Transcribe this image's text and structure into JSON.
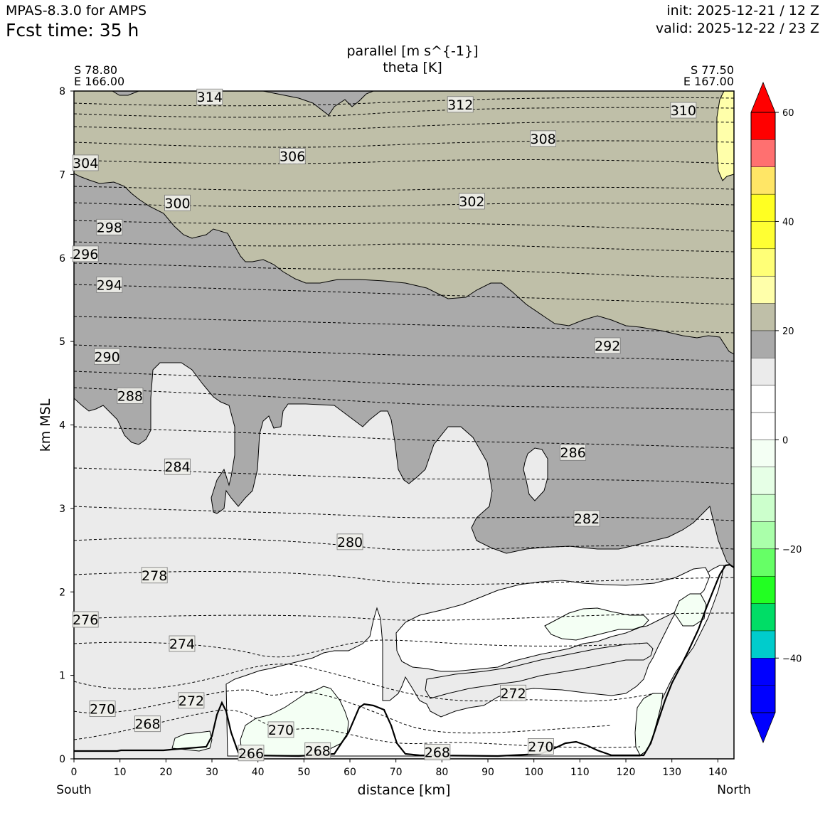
{
  "header": {
    "model": "MPAS-8.3.0 for AMPS",
    "fcst_time": "Fcst time:   35 h",
    "init": "init: 2025-12-21 / 12 Z",
    "valid": "valid: 2025-12-22 / 23 Z"
  },
  "chart_data": {
    "type": "cross-section",
    "title_line1": "parallel [m s^{-1}]",
    "title_line2": "theta [K]",
    "xlabel": "distance [km]",
    "ylabel": "km MSL",
    "xlim": [
      0,
      143.5
    ],
    "ylim": [
      0,
      8
    ],
    "x_ticks": [
      "0",
      "10",
      "20",
      "30",
      "40",
      "50",
      "60",
      "70",
      "80",
      "90",
      "100",
      "110",
      "120",
      "130",
      "140"
    ],
    "y_ticks": [
      "0",
      "1",
      "2",
      "3",
      "4",
      "5",
      "6",
      "7",
      "8"
    ],
    "left_endpoint": {
      "lat": "S 78.80",
      "lon": "E 166.00",
      "label": "South"
    },
    "right_endpoint": {
      "lat": "S 77.50",
      "lon": "E 167.00",
      "label": "North"
    },
    "colorbar": {
      "levels": [
        -50,
        -45,
        -40,
        -35,
        -30,
        -25,
        -20,
        -15,
        -10,
        -5,
        0,
        5,
        10,
        15,
        20,
        25,
        30,
        35,
        40,
        45,
        50,
        55,
        60
      ],
      "colors": [
        "#0000ff",
        "#0000ff",
        "#00cccc",
        "#00dd66",
        "#22ff22",
        "#66ff66",
        "#aaffaa",
        "#ccffcc",
        "#e6ffe6",
        "#f4fff4",
        "#ffffff",
        "#ffffff",
        "#ebebeb",
        "#aaaaaa",
        "#bfbfa8",
        "#ffffaa",
        "#ffff77",
        "#ffff33",
        "#ffff22",
        "#ffe666",
        "#ff7070",
        "#ff0000"
      ],
      "tick_labels": [
        "60",
        "40",
        "20",
        "0",
        "−20",
        "−40"
      ],
      "tick_values": [
        60,
        40,
        20,
        0,
        -20,
        -40
      ],
      "extend": "both"
    },
    "theta_labels": [
      {
        "text": "314",
        "x": 29.5,
        "y": 7.93
      },
      {
        "text": "312",
        "x": 84.0,
        "y": 7.84
      },
      {
        "text": "310",
        "x": 132.5,
        "y": 7.77
      },
      {
        "text": "308",
        "x": 102.0,
        "y": 7.43
      },
      {
        "text": "306",
        "x": 47.5,
        "y": 7.22
      },
      {
        "text": "304",
        "x": 2.5,
        "y": 7.14
      },
      {
        "text": "302",
        "x": 86.5,
        "y": 6.68
      },
      {
        "text": "300",
        "x": 22.5,
        "y": 6.66
      },
      {
        "text": "298",
        "x": 7.7,
        "y": 6.37
      },
      {
        "text": "296",
        "x": 2.5,
        "y": 6.05
      },
      {
        "text": "294",
        "x": 7.7,
        "y": 5.68
      },
      {
        "text": "292",
        "x": 116.0,
        "y": 4.95
      },
      {
        "text": "290",
        "x": 7.2,
        "y": 4.82
      },
      {
        "text": "288",
        "x": 12.2,
        "y": 4.35
      },
      {
        "text": "286",
        "x": 108.5,
        "y": 3.67
      },
      {
        "text": "284",
        "x": 22.5,
        "y": 3.5
      },
      {
        "text": "282",
        "x": 111.5,
        "y": 2.88
      },
      {
        "text": "280",
        "x": 60.0,
        "y": 2.6
      },
      {
        "text": "278",
        "x": 17.5,
        "y": 2.2
      },
      {
        "text": "276",
        "x": 2.5,
        "y": 1.67
      },
      {
        "text": "274",
        "x": 23.5,
        "y": 1.38
      },
      {
        "text": "272",
        "x": 25.5,
        "y": 0.7
      },
      {
        "text": "272",
        "x": 95.5,
        "y": 0.79
      },
      {
        "text": "270",
        "x": 6.2,
        "y": 0.6
      },
      {
        "text": "270",
        "x": 45.0,
        "y": 0.35
      },
      {
        "text": "270",
        "x": 101.5,
        "y": 0.15
      },
      {
        "text": "268",
        "x": 16.0,
        "y": 0.42
      },
      {
        "text": "268",
        "x": 53.0,
        "y": 0.1
      },
      {
        "text": "268",
        "x": 79.0,
        "y": 0.08
      },
      {
        "text": "266",
        "x": 38.5,
        "y": 0.07
      }
    ]
  }
}
